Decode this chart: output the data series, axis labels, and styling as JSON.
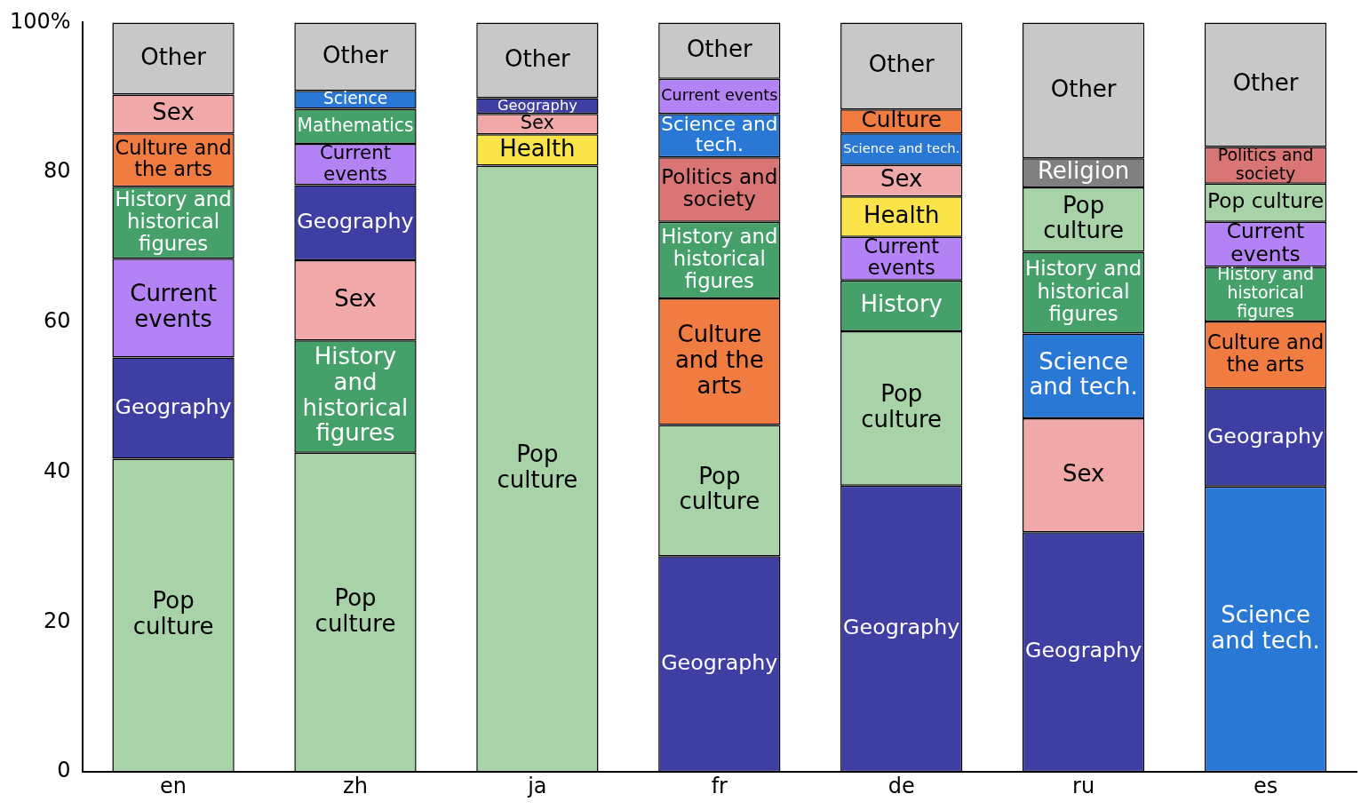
{
  "chart_data": {
    "type": "bar",
    "stacked": true,
    "categories": [
      "en",
      "zh",
      "ja",
      "fr",
      "de",
      "ru",
      "es"
    ],
    "ylim": [
      0,
      100
    ],
    "yticks": [
      0,
      20,
      40,
      60,
      {
        "value": 80,
        "label": "80"
      },
      {
        "value": 100,
        "label": "100%"
      }
    ],
    "grid": false,
    "legend": false,
    "series": [
      {
        "values": [
          41.8,
          42.6,
          80.9,
          28.8,
          38.2,
          32.0,
          38.1
        ],
        "colors": [
          "#a8d3a8",
          "#a8d3a8",
          "#a8d3a8",
          "#3f3fa3",
          "#3f3fa3",
          "#3f3fa3",
          "#2a78d6"
        ],
        "value_labels": [
          "Pop\nculture",
          "Pop\nculture",
          "Pop\nculture",
          "Geography",
          "Geography",
          "Geography",
          "Science\nand tech."
        ]
      },
      {
        "values": [
          13.5,
          15.0,
          4.2,
          17.5,
          20.6,
          15.2,
          13.1
        ],
        "colors": [
          "#3f3fa3",
          "#46a06a",
          "#fbe44a",
          "#a8d3a8",
          "#a8d3a8",
          "#f0a8a8",
          "#3f3fa3"
        ],
        "value_labels": [
          "Geography",
          "History\nand\nhistorical\nfigures",
          "Health",
          "Pop\nculture",
          "Pop\nculture",
          "Sex",
          "Geography"
        ]
      },
      {
        "values": [
          13.2,
          10.7,
          2.7,
          16.9,
          6.8,
          11.3,
          8.9
        ],
        "colors": [
          "#b382f5",
          "#f0a8a8",
          "#f0a8a8",
          "#f07c42",
          "#46a06a",
          "#2a78d6",
          "#f07c42"
        ],
        "value_labels": [
          "Current\nevents",
          "Sex",
          "Sex",
          "Culture\nand the\narts",
          "History",
          "Science\nand tech.",
          "Culture and\nthe arts"
        ]
      },
      {
        "values": [
          9.6,
          10.0,
          2.1,
          10.2,
          5.8,
          10.9,
          7.3
        ],
        "colors": [
          "#46a06a",
          "#3f3fa3",
          "#3f3fa3",
          "#46a06a",
          "#b382f5",
          "#46a06a",
          "#46a06a"
        ],
        "value_labels": [
          "History and\nhistorical\nfigures",
          "Geography",
          "Geography",
          "History and\nhistorical\nfigures",
          "Current\nevents",
          "History and\nhistorical\nfigures",
          "History and\nhistorical\nfigures"
        ]
      },
      {
        "values": [
          7.1,
          5.5,
          10.1,
          8.6,
          5.4,
          8.6,
          6.0
        ],
        "colors": [
          "#f07c42",
          "#b382f5",
          "#c8c8c8",
          "#d97575",
          "#fbe44a",
          "#a8d3a8",
          "#b382f5"
        ],
        "value_labels": [
          "Culture and\nthe arts",
          "Current\nevents",
          "Other",
          "Politics and\nsociety",
          "Health",
          "Pop\nculture",
          "Current\nevents"
        ]
      },
      {
        "values": [
          5.2,
          4.7,
          null,
          5.8,
          4.2,
          3.9,
          5.1
        ],
        "colors": [
          "#f0a8a8",
          "#46a06a",
          "#c8c8c8",
          "#2a78d6",
          "#f0a8a8",
          "#808080",
          "#a8d3a8"
        ],
        "value_labels": [
          "Sex",
          "Mathematics",
          null,
          "Science and\ntech.",
          "Sex",
          "Religion",
          "Pop culture"
        ]
      },
      {
        "values": [
          9.6,
          2.4,
          null,
          4.7,
          4.2,
          18.1,
          4.9
        ],
        "colors": [
          "#c8c8c8",
          "#2a78d6",
          "#c8c8c8",
          "#b382f5",
          "#2a78d6",
          "#c8c8c8",
          "#d97575"
        ],
        "value_labels": [
          "Other",
          "Science",
          null,
          "Current events",
          "Science and tech.",
          "Other",
          "Politics and\nsociety"
        ]
      },
      {
        "values": [
          null,
          9.1,
          null,
          7.5,
          3.2,
          null,
          16.6
        ],
        "colors": [
          "#c8c8c8",
          "#c8c8c8",
          "#c8c8c8",
          "#c8c8c8",
          "#f07c42",
          "#c8c8c8",
          "#c8c8c8"
        ],
        "value_labels": [
          null,
          "Other",
          null,
          "Other",
          "Culture",
          null,
          "Other"
        ]
      },
      {
        "values": [
          null,
          null,
          null,
          null,
          11.6,
          null,
          null
        ],
        "colors": [
          "#c8c8c8",
          "#c8c8c8",
          "#c8c8c8",
          "#c8c8c8",
          "#c8c8c8",
          "#c8c8c8",
          "#c8c8c8"
        ],
        "value_labels": [
          null,
          null,
          null,
          null,
          "Other",
          null,
          null
        ]
      }
    ]
  }
}
